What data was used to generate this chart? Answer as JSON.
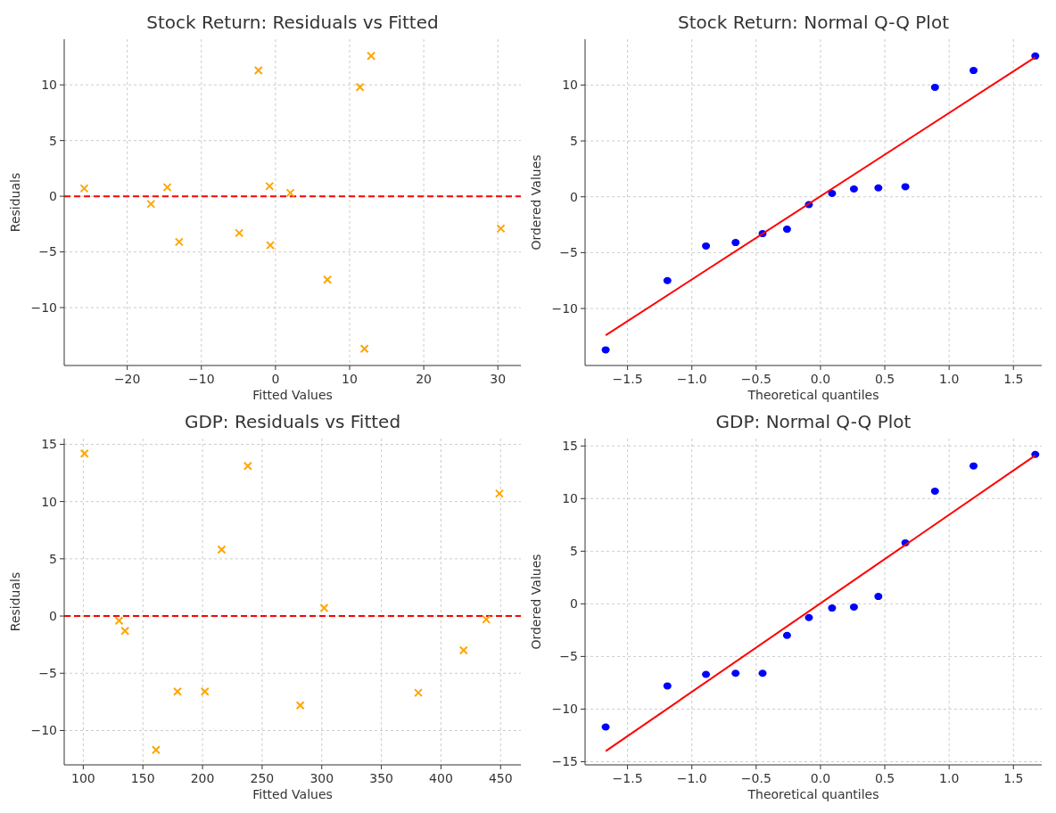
{
  "chart_data": [
    {
      "type": "scatter",
      "title": "Stock Return: Residuals vs Fitted",
      "xlabel": "Fitted Values",
      "ylabel": "Residuals",
      "marker": "cross",
      "grid": true,
      "xlim": [
        -28.5,
        33.1
      ],
      "xticks": [
        {
          "value": -20,
          "label": "−20"
        },
        {
          "value": -10,
          "label": "−10"
        },
        0,
        10,
        20,
        30
      ],
      "ylim": [
        -15.2,
        14.1
      ],
      "yticks": [
        {
          "value": -10,
          "label": "−10"
        },
        {
          "value": -5,
          "label": "−5"
        },
        0,
        5,
        10
      ],
      "series": [
        {
          "color": "#ffa500",
          "x": [
            -25.8,
            -16.8,
            -14.6,
            -13,
            -4.9,
            -2.3,
            -0.8,
            -0.7,
            2,
            7,
            11.4,
            12,
            12.9,
            30.4
          ],
          "values": [
            0.7,
            -0.7,
            0.8,
            -4.1,
            -3.3,
            11.3,
            0.9,
            -4.4,
            0.3,
            -7.5,
            9.8,
            -13.7,
            12.6,
            -2.9
          ]
        }
      ],
      "ref_lines": [
        {
          "axis": "y",
          "value": 0,
          "color": "#ff0000",
          "line_style": "dashed"
        }
      ]
    },
    {
      "type": "scatter",
      "title": "Stock Return: Normal Q-Q Plot",
      "xlabel": "Theoretical quantiles",
      "ylabel": "Ordered Values",
      "grid": true,
      "xlim": [
        -1.83,
        1.72
      ],
      "xticks": [
        {
          "value": -1.5,
          "label": "−1.5"
        },
        {
          "value": -1,
          "label": "−1.0"
        },
        {
          "value": -0.5,
          "label": "−0.5"
        },
        {
          "value": 0,
          "label": "0.0"
        },
        0.5,
        {
          "value": 1,
          "label": "1.0"
        },
        1.5
      ],
      "ylim": [
        -15.1,
        14.1
      ],
      "yticks": [
        {
          "value": -10,
          "label": "−10"
        },
        {
          "value": -5,
          "label": "−5"
        },
        0,
        5,
        10
      ],
      "series": [
        {
          "color": "#0000ff",
          "marker": "circle",
          "x": [
            -1.67,
            -1.19,
            -0.89,
            -0.66,
            -0.45,
            -0.26,
            -0.09,
            0.09,
            0.26,
            0.45,
            0.66,
            0.89,
            1.19,
            1.67
          ],
          "values": [
            -13.7,
            -7.5,
            -4.4,
            -4.1,
            -3.3,
            -2.9,
            -0.7,
            0.3,
            0.7,
            0.8,
            0.9,
            9.8,
            11.3,
            12.6
          ]
        },
        {
          "type": "line",
          "color": "#ff0000",
          "marker": "none",
          "x": [
            -1.67,
            1.67
          ],
          "values": [
            -12.4,
            12.5
          ]
        }
      ]
    },
    {
      "type": "scatter",
      "title": "GDP: Residuals vs Fitted",
      "xlabel": "Fitted Values",
      "ylabel": "Residuals",
      "marker": "cross",
      "grid": true,
      "xlim": [
        84,
        467
      ],
      "xticks": [
        100,
        150,
        200,
        250,
        300,
        350,
        400,
        450
      ],
      "ylim": [
        -13,
        15.5
      ],
      "yticks": [
        {
          "value": -10,
          "label": "−10"
        },
        {
          "value": -5,
          "label": "−5"
        },
        0,
        5,
        10,
        15
      ],
      "series": [
        {
          "color": "#ffa500",
          "x": [
            101,
            130,
            135,
            161,
            179,
            202,
            216,
            238,
            282,
            302,
            381,
            419,
            438,
            449
          ],
          "values": [
            14.2,
            -0.4,
            -1.3,
            -11.7,
            -6.6,
            -6.6,
            5.8,
            13.1,
            -7.8,
            0.7,
            -6.7,
            -3,
            -0.3,
            10.7
          ]
        }
      ],
      "ref_lines": [
        {
          "axis": "y",
          "value": 0,
          "color": "#ff0000",
          "line_style": "dashed"
        }
      ]
    },
    {
      "type": "scatter",
      "title": "GDP: Normal Q-Q Plot",
      "xlabel": "Theoretical quantiles",
      "ylabel": "Ordered Values",
      "grid": true,
      "xlim": [
        -1.83,
        1.72
      ],
      "xticks": [
        {
          "value": -1.5,
          "label": "−1.5"
        },
        {
          "value": -1,
          "label": "−1.0"
        },
        {
          "value": -0.5,
          "label": "−0.5"
        },
        {
          "value": 0,
          "label": "0.0"
        },
        0.5,
        {
          "value": 1,
          "label": "1.0"
        },
        1.5
      ],
      "ylim": [
        -15.3,
        15.7
      ],
      "yticks": [
        {
          "value": -15,
          "label": "−15"
        },
        {
          "value": -10,
          "label": "−10"
        },
        {
          "value": -5,
          "label": "−5"
        },
        0,
        5,
        10,
        15
      ],
      "series": [
        {
          "color": "#0000ff",
          "marker": "circle",
          "x": [
            -1.67,
            -1.19,
            -0.89,
            -0.66,
            -0.45,
            -0.26,
            -0.09,
            0.09,
            0.26,
            0.45,
            0.66,
            0.89,
            1.19,
            1.67
          ],
          "values": [
            -11.7,
            -7.8,
            -6.7,
            -6.6,
            -6.6,
            -3,
            -1.3,
            -0.4,
            -0.3,
            0.7,
            5.8,
            10.7,
            13.1,
            14.2
          ]
        },
        {
          "type": "line",
          "color": "#ff0000",
          "marker": "none",
          "x": [
            -1.67,
            1.67
          ],
          "values": [
            -14,
            14.1
          ]
        }
      ]
    }
  ]
}
